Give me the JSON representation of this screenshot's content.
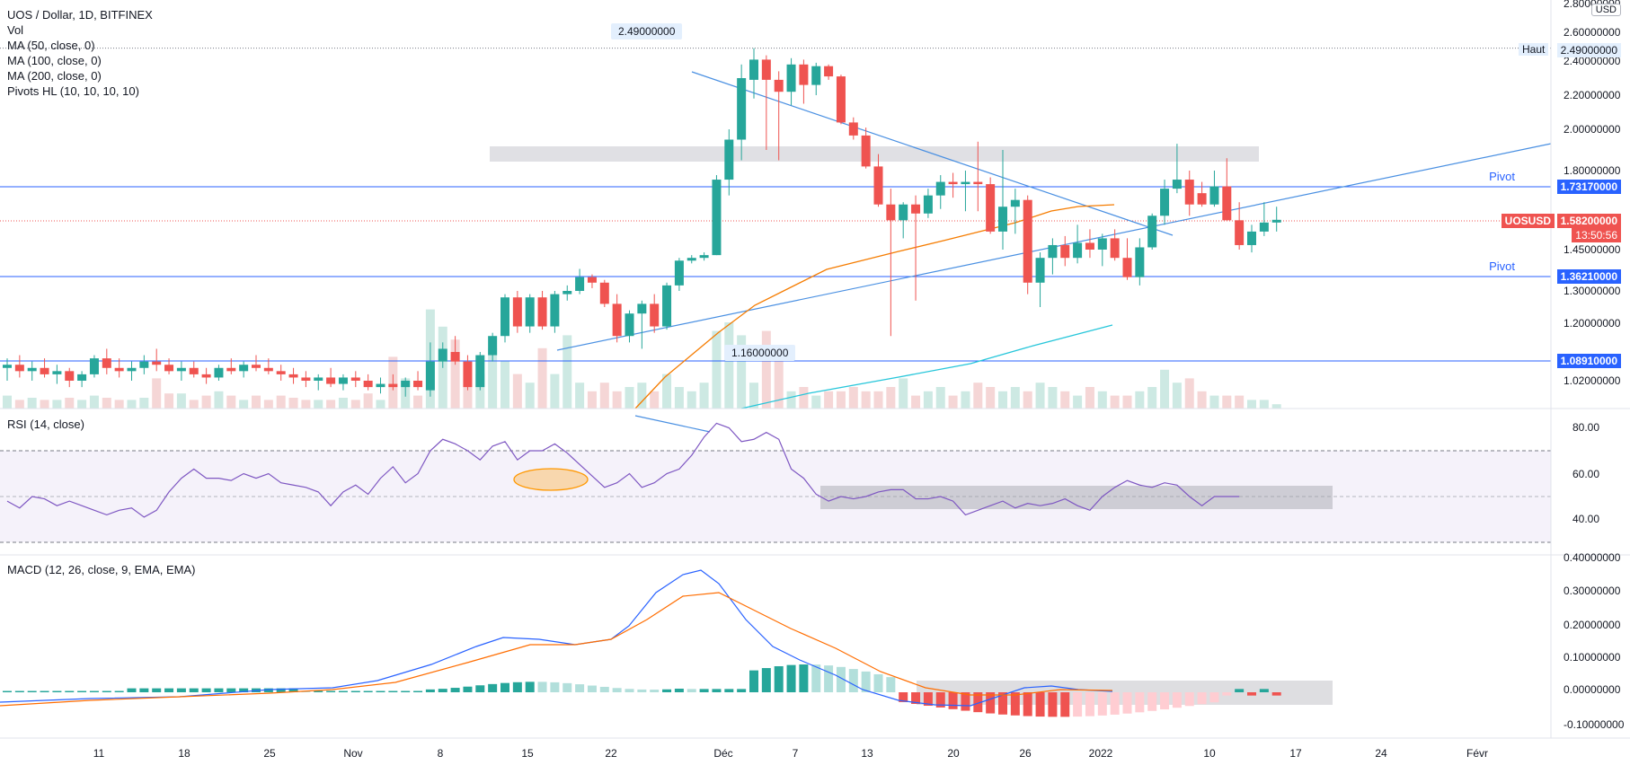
{
  "header": {
    "title": "UOS / Dollar, 1D, BITFINEX",
    "indicators": [
      "Vol",
      "MA (50, close, 0)",
      "MA (100, close, 0)",
      "MA (200, close, 0)",
      "Pivots HL (10, 10, 10, 10)"
    ]
  },
  "colors": {
    "up": "#26a69a",
    "down": "#ef5350",
    "up_vol": "#cde9e3",
    "down_vol": "#f5d6d6",
    "ma_orange": "#f57c00",
    "ma_teal": "#26c6da",
    "trend_blue": "#4a90e2",
    "pivot_line": "#2962ff",
    "rsi_line": "#7e57c2",
    "macd_line": "#2962ff",
    "signal_line": "#ff6d00",
    "hist_up_strong": "#26a69a",
    "hist_up_weak": "#b2dfdb",
    "hist_down_strong": "#ef5350",
    "hist_down_weak": "#ffcdd2"
  },
  "price_axis": {
    "ticks": [
      "2.80000000",
      "2.60000000",
      "2.40000000",
      "2.20000000",
      "2.00000000",
      "1.80000000",
      "1.45000000",
      "1.30000000",
      "1.20000000",
      "1.02000000"
    ],
    "currency": "USD"
  },
  "price_tags": {
    "haut_label": "Haut",
    "haut_value": "2.49000000",
    "pivot_label": "Pivot",
    "pivot_high": "1.73170000",
    "pivot_low": "1.36210000",
    "support": "1.08910000",
    "symbol": "UOSUSD",
    "last_price": "1.58200000",
    "countdown": "13:50:56"
  },
  "annotations": {
    "high_callout": "2.49000000",
    "low_callout": "1.16000000"
  },
  "rsi": {
    "title": "RSI (14, close)",
    "ticks": [
      "80.00",
      "60.00",
      "40.00"
    ],
    "values": [
      48,
      45,
      50,
      49,
      46,
      48,
      46,
      44,
      42,
      44,
      45,
      41,
      44,
      52,
      58,
      62,
      58,
      58,
      57,
      60,
      58,
      60,
      56,
      55,
      54,
      52,
      46,
      52,
      55,
      51,
      58,
      63,
      56,
      60,
      70,
      75,
      73,
      70,
      66,
      72,
      74,
      66,
      70,
      70,
      73,
      69,
      64,
      59,
      54,
      56,
      60,
      54,
      56,
      60,
      62,
      68,
      76,
      82,
      80,
      74,
      75,
      78,
      75,
      62,
      58,
      51,
      48,
      50,
      49,
      50,
      52,
      53,
      53,
      49,
      49,
      50,
      48,
      42,
      44,
      46,
      48,
      45,
      47,
      46,
      47,
      49,
      46,
      44,
      50,
      54,
      57,
      55,
      54,
      56,
      55,
      50,
      46,
      50,
      50,
      50
    ]
  },
  "macd": {
    "title": "MACD (12, 26, close, 9, EMA, EMA)",
    "ticks": [
      "0.40000000",
      "0.30000000",
      "0.20000000",
      "0.10000000",
      "0.00000000",
      "-0.10000000"
    ]
  },
  "time_axis": {
    "labels": [
      "11",
      "18",
      "25",
      "Nov",
      "8",
      "15",
      "22",
      "Déc",
      "7",
      "13",
      "20",
      "26",
      "2022",
      "10",
      "17",
      "24",
      "Févr"
    ]
  },
  "chart_data": {
    "type": "candlestick",
    "title": "UOS / Dollar, 1D, BITFINEX",
    "ylim": [
      0.95,
      2.8
    ],
    "candles": [
      {
        "o": 1.06,
        "h": 1.09,
        "l": 1.02,
        "c": 1.07
      },
      {
        "o": 1.07,
        "h": 1.1,
        "l": 1.03,
        "c": 1.05
      },
      {
        "o": 1.05,
        "h": 1.08,
        "l": 1.02,
        "c": 1.06
      },
      {
        "o": 1.06,
        "h": 1.09,
        "l": 1.03,
        "c": 1.04
      },
      {
        "o": 1.04,
        "h": 1.07,
        "l": 1.01,
        "c": 1.05
      },
      {
        "o": 1.05,
        "h": 1.06,
        "l": 1.0,
        "c": 1.02
      },
      {
        "o": 1.02,
        "h": 1.05,
        "l": 1.0,
        "c": 1.04
      },
      {
        "o": 1.04,
        "h": 1.1,
        "l": 1.03,
        "c": 1.09
      },
      {
        "o": 1.09,
        "h": 1.12,
        "l": 1.04,
        "c": 1.06
      },
      {
        "o": 1.06,
        "h": 1.09,
        "l": 1.03,
        "c": 1.05
      },
      {
        "o": 1.05,
        "h": 1.08,
        "l": 1.02,
        "c": 1.06
      },
      {
        "o": 1.06,
        "h": 1.1,
        "l": 1.04,
        "c": 1.08
      },
      {
        "o": 1.08,
        "h": 1.12,
        "l": 1.05,
        "c": 1.07
      },
      {
        "o": 1.07,
        "h": 1.09,
        "l": 1.04,
        "c": 1.05
      },
      {
        "o": 1.05,
        "h": 1.08,
        "l": 1.02,
        "c": 1.06
      },
      {
        "o": 1.06,
        "h": 1.08,
        "l": 1.03,
        "c": 1.04
      },
      {
        "o": 1.04,
        "h": 1.06,
        "l": 1.01,
        "c": 1.03
      },
      {
        "o": 1.03,
        "h": 1.07,
        "l": 1.02,
        "c": 1.06
      },
      {
        "o": 1.06,
        "h": 1.09,
        "l": 1.04,
        "c": 1.05
      },
      {
        "o": 1.05,
        "h": 1.08,
        "l": 1.03,
        "c": 1.07
      },
      {
        "o": 1.07,
        "h": 1.1,
        "l": 1.05,
        "c": 1.06
      },
      {
        "o": 1.06,
        "h": 1.09,
        "l": 1.04,
        "c": 1.05
      },
      {
        "o": 1.05,
        "h": 1.07,
        "l": 1.02,
        "c": 1.04
      },
      {
        "o": 1.04,
        "h": 1.06,
        "l": 1.01,
        "c": 1.03
      },
      {
        "o": 1.03,
        "h": 1.05,
        "l": 1.0,
        "c": 1.02
      },
      {
        "o": 1.02,
        "h": 1.04,
        "l": 0.99,
        "c": 1.03
      },
      {
        "o": 1.03,
        "h": 1.06,
        "l": 1.0,
        "c": 1.01
      },
      {
        "o": 1.01,
        "h": 1.04,
        "l": 0.99,
        "c": 1.03
      },
      {
        "o": 1.03,
        "h": 1.05,
        "l": 1.0,
        "c": 1.02
      },
      {
        "o": 1.02,
        "h": 1.04,
        "l": 0.99,
        "c": 1.0
      },
      {
        "o": 1.0,
        "h": 1.03,
        "l": 0.98,
        "c": 1.01
      },
      {
        "o": 1.01,
        "h": 1.04,
        "l": 0.99,
        "c": 1.0
      },
      {
        "o": 1.0,
        "h": 1.03,
        "l": 0.97,
        "c": 1.02
      },
      {
        "o": 1.02,
        "h": 1.05,
        "l": 0.99,
        "c": 1.0
      },
      {
        "o": 0.99,
        "h": 1.14,
        "l": 0.97,
        "c": 1.08
      },
      {
        "o": 1.08,
        "h": 1.14,
        "l": 1.06,
        "c": 1.12
      },
      {
        "o": 1.11,
        "h": 1.16,
        "l": 1.07,
        "c": 1.08
      },
      {
        "o": 1.08,
        "h": 1.1,
        "l": 0.99,
        "c": 1.0
      },
      {
        "o": 1.0,
        "h": 1.11,
        "l": 0.99,
        "c": 1.1
      },
      {
        "o": 1.1,
        "h": 1.17,
        "l": 1.08,
        "c": 1.16
      },
      {
        "o": 1.16,
        "h": 1.29,
        "l": 1.14,
        "c": 1.28
      },
      {
        "o": 1.28,
        "h": 1.3,
        "l": 1.17,
        "c": 1.19
      },
      {
        "o": 1.19,
        "h": 1.29,
        "l": 1.17,
        "c": 1.28
      },
      {
        "o": 1.28,
        "h": 1.3,
        "l": 1.18,
        "c": 1.19
      },
      {
        "o": 1.19,
        "h": 1.3,
        "l": 1.17,
        "c": 1.29
      },
      {
        "o": 1.29,
        "h": 1.32,
        "l": 1.27,
        "c": 1.3
      },
      {
        "o": 1.3,
        "h": 1.38,
        "l": 1.29,
        "c": 1.35
      },
      {
        "o": 1.35,
        "h": 1.36,
        "l": 1.31,
        "c": 1.33
      },
      {
        "o": 1.33,
        "h": 1.34,
        "l": 1.25,
        "c": 1.26
      },
      {
        "o": 1.26,
        "h": 1.29,
        "l": 1.14,
        "c": 1.16
      },
      {
        "o": 1.16,
        "h": 1.24,
        "l": 1.14,
        "c": 1.23
      },
      {
        "o": 1.23,
        "h": 1.27,
        "l": 1.12,
        "c": 1.26
      },
      {
        "o": 1.26,
        "h": 1.29,
        "l": 1.17,
        "c": 1.19
      },
      {
        "o": 1.19,
        "h": 1.33,
        "l": 1.18,
        "c": 1.32
      },
      {
        "o": 1.32,
        "h": 1.42,
        "l": 1.3,
        "c": 1.41
      },
      {
        "o": 1.41,
        "h": 1.43,
        "l": 1.4,
        "c": 1.42
      },
      {
        "o": 1.42,
        "h": 1.44,
        "l": 1.41,
        "c": 1.43
      },
      {
        "o": 1.43,
        "h": 1.78,
        "l": 1.43,
        "c": 1.76
      },
      {
        "o": 1.76,
        "h": 2.0,
        "l": 1.69,
        "c": 1.95
      },
      {
        "o": 1.95,
        "h": 2.38,
        "l": 1.85,
        "c": 2.3
      },
      {
        "o": 2.29,
        "h": 2.49,
        "l": 2.18,
        "c": 2.41
      },
      {
        "o": 2.41,
        "h": 2.44,
        "l": 1.9,
        "c": 2.29
      },
      {
        "o": 2.29,
        "h": 2.34,
        "l": 1.85,
        "c": 2.22
      },
      {
        "o": 2.22,
        "h": 2.42,
        "l": 2.14,
        "c": 2.38
      },
      {
        "o": 2.38,
        "h": 2.41,
        "l": 2.15,
        "c": 2.26
      },
      {
        "o": 2.26,
        "h": 2.39,
        "l": 2.2,
        "c": 2.37
      },
      {
        "o": 2.37,
        "h": 2.38,
        "l": 2.29,
        "c": 2.31
      },
      {
        "o": 2.31,
        "h": 2.32,
        "l": 2.03,
        "c": 2.04
      },
      {
        "o": 2.04,
        "h": 2.07,
        "l": 1.95,
        "c": 1.97
      },
      {
        "o": 1.97,
        "h": 2.01,
        "l": 1.81,
        "c": 1.82
      },
      {
        "o": 1.82,
        "h": 1.88,
        "l": 1.64,
        "c": 1.65
      },
      {
        "o": 1.65,
        "h": 1.72,
        "l": 1.16,
        "c": 1.58
      },
      {
        "o": 1.58,
        "h": 1.66,
        "l": 1.5,
        "c": 1.65
      },
      {
        "o": 1.65,
        "h": 1.69,
        "l": 1.27,
        "c": 1.61
      },
      {
        "o": 1.61,
        "h": 1.72,
        "l": 1.59,
        "c": 1.69
      },
      {
        "o": 1.69,
        "h": 1.78,
        "l": 1.63,
        "c": 1.75
      },
      {
        "o": 1.75,
        "h": 1.79,
        "l": 1.68,
        "c": 1.74
      },
      {
        "o": 1.74,
        "h": 1.8,
        "l": 1.62,
        "c": 1.75
      },
      {
        "o": 1.75,
        "h": 1.94,
        "l": 1.62,
        "c": 1.74
      },
      {
        "o": 1.74,
        "h": 1.77,
        "l": 1.52,
        "c": 1.53
      },
      {
        "o": 1.53,
        "h": 1.9,
        "l": 1.45,
        "c": 1.64
      },
      {
        "o": 1.64,
        "h": 1.72,
        "l": 1.52,
        "c": 1.67
      },
      {
        "o": 1.67,
        "h": 1.69,
        "l": 1.29,
        "c": 1.33
      },
      {
        "o": 1.33,
        "h": 1.44,
        "l": 1.25,
        "c": 1.42
      },
      {
        "o": 1.42,
        "h": 1.5,
        "l": 1.36,
        "c": 1.47
      },
      {
        "o": 1.47,
        "h": 1.51,
        "l": 1.39,
        "c": 1.42
      },
      {
        "o": 1.42,
        "h": 1.56,
        "l": 1.4,
        "c": 1.48
      },
      {
        "o": 1.48,
        "h": 1.54,
        "l": 1.42,
        "c": 1.45
      },
      {
        "o": 1.45,
        "h": 1.52,
        "l": 1.39,
        "c": 1.5
      },
      {
        "o": 1.5,
        "h": 1.54,
        "l": 1.41,
        "c": 1.42
      },
      {
        "o": 1.42,
        "h": 1.5,
        "l": 1.34,
        "c": 1.35
      },
      {
        "o": 1.35,
        "h": 1.5,
        "l": 1.32,
        "c": 1.46
      },
      {
        "o": 1.46,
        "h": 1.61,
        "l": 1.45,
        "c": 1.6
      },
      {
        "o": 1.6,
        "h": 1.76,
        "l": 1.56,
        "c": 1.72
      },
      {
        "o": 1.72,
        "h": 1.93,
        "l": 1.7,
        "c": 1.76
      },
      {
        "o": 1.76,
        "h": 1.8,
        "l": 1.6,
        "c": 1.65
      },
      {
        "o": 1.7,
        "h": 1.75,
        "l": 1.64,
        "c": 1.65
      },
      {
        "o": 1.65,
        "h": 1.8,
        "l": 1.64,
        "c": 1.73
      },
      {
        "o": 1.73,
        "h": 1.86,
        "l": 1.58,
        "c": 1.58
      },
      {
        "o": 1.58,
        "h": 1.66,
        "l": 1.45,
        "c": 1.47
      },
      {
        "o": 1.47,
        "h": 1.56,
        "l": 1.44,
        "c": 1.53
      },
      {
        "o": 1.53,
        "h": 1.66,
        "l": 1.51,
        "c": 1.57
      },
      {
        "o": 1.57,
        "h": 1.64,
        "l": 1.53,
        "c": 1.582
      }
    ],
    "volume": [
      0.3,
      0.2,
      0.25,
      0.2,
      0.2,
      0.25,
      0.2,
      0.3,
      0.25,
      0.2,
      0.2,
      0.25,
      0.7,
      0.35,
      0.35,
      0.2,
      0.3,
      0.4,
      0.3,
      0.2,
      0.3,
      0.2,
      0.3,
      0.25,
      0.2,
      0.2,
      0.2,
      0.25,
      0.2,
      0.35,
      0.2,
      1.2,
      0.7,
      0.3,
      2.3,
      1.9,
      1.6,
      0.9,
      0.8,
      1.4,
      1.1,
      0.8,
      0.6,
      1.4,
      0.8,
      1.7,
      0.6,
      0.4,
      0.6,
      0.4,
      0.5,
      0.6,
      0.4,
      0.8,
      0.5,
      0.4,
      0.6,
      1.8,
      2.0,
      1.7,
      0.6,
      1.8,
      1.1,
      0.4,
      0.5,
      0.3,
      0.4,
      0.4,
      0.5,
      0.4,
      0.4,
      0.5,
      0.7,
      0.3,
      0.4,
      0.5,
      0.3,
      0.4,
      0.6,
      0.5,
      0.4,
      0.5,
      0.4,
      0.6,
      0.5,
      0.4,
      0.3,
      0.5,
      0.4,
      0.3,
      0.3,
      0.4,
      0.5,
      0.9,
      0.6,
      0.7,
      0.4,
      0.3,
      0.3,
      0.3,
      0.2,
      0.2,
      0.1
    ],
    "pivot_high": 1.7317,
    "pivot_low": 1.3621,
    "support": 1.0891,
    "haut": 2.49,
    "low_mark": 1.16,
    "last": 1.582
  }
}
